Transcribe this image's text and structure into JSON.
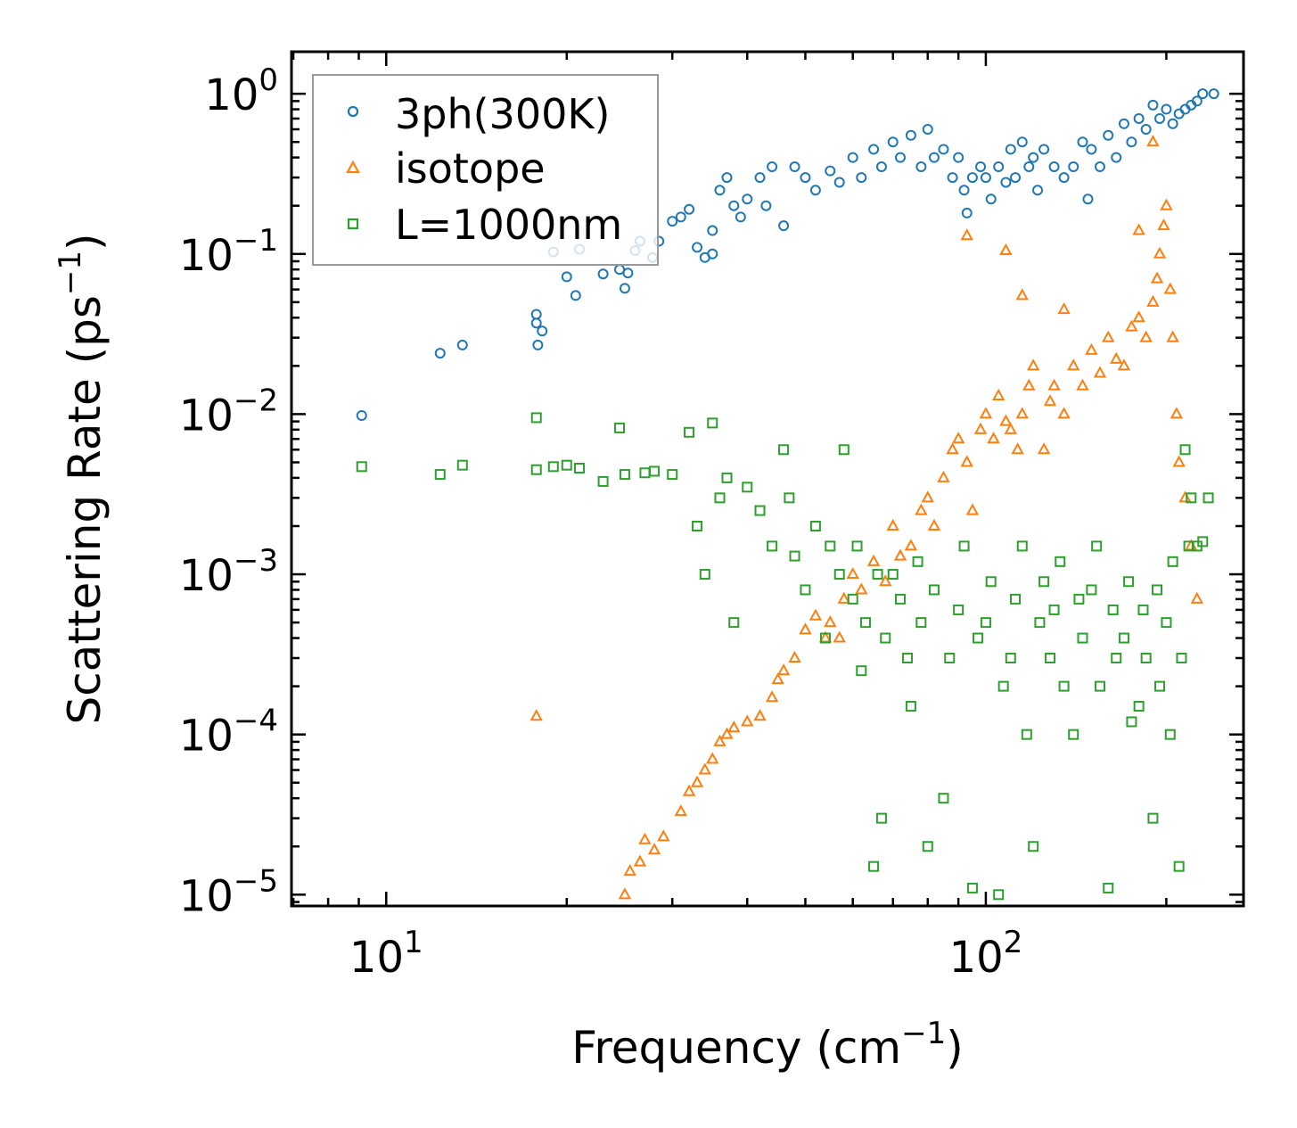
{
  "chart_data": {
    "type": "scatter",
    "title": "",
    "xlabel": "Frequency (cm",
    "xlabel_sup": "−1",
    "xlabel_end": ")",
    "ylabel": "Scattering Rate (ps",
    "ylabel_sup": "−1",
    "ylabel_end": ")",
    "xscale": "log",
    "yscale": "log",
    "xlim": [
      6.95,
      269
    ],
    "ylim": [
      8.5e-06,
      1.83
    ],
    "grid": false,
    "legend_position": "top-left",
    "x_ticks": [
      {
        "value": 10,
        "base": "10",
        "exp": "1"
      },
      {
        "value": 100,
        "base": "10",
        "exp": "2"
      }
    ],
    "y_ticks": [
      {
        "value": 1,
        "base": "10",
        "exp": "0"
      },
      {
        "value": 0.1,
        "base": "10",
        "exp": "−1"
      },
      {
        "value": 0.01,
        "base": "10",
        "exp": "−2"
      },
      {
        "value": 0.001,
        "base": "10",
        "exp": "−3"
      },
      {
        "value": 0.0001,
        "base": "10",
        "exp": "−4"
      },
      {
        "value": 1e-05,
        "base": "10",
        "exp": "−5"
      }
    ],
    "series": [
      {
        "name": "3ph(300K)",
        "marker": "circle",
        "color": "#1f77b4",
        "points": [
          [
            9.1,
            0.0098
          ],
          [
            12.3,
            0.024
          ],
          [
            13.4,
            0.027
          ],
          [
            17.8,
            0.042
          ],
          [
            17.8,
            0.037
          ],
          [
            18.2,
            0.033
          ],
          [
            17.9,
            0.027
          ],
          [
            19,
            0.103
          ],
          [
            20,
            0.072
          ],
          [
            20.7,
            0.055
          ],
          [
            21,
            0.107
          ],
          [
            23,
            0.075
          ],
          [
            24.5,
            0.08
          ],
          [
            25,
            0.061
          ],
          [
            25.3,
            0.076
          ],
          [
            26,
            0.105
          ],
          [
            26.5,
            0.12
          ],
          [
            27.8,
            0.095
          ],
          [
            28.5,
            0.12
          ],
          [
            30,
            0.16
          ],
          [
            31,
            0.17
          ],
          [
            32,
            0.19
          ],
          [
            33,
            0.11
          ],
          [
            34,
            0.095
          ],
          [
            35,
            0.14
          ],
          [
            35,
            0.1
          ],
          [
            36,
            0.25
          ],
          [
            37,
            0.3
          ],
          [
            38,
            0.2
          ],
          [
            39,
            0.17
          ],
          [
            40,
            0.22
          ],
          [
            42,
            0.3
          ],
          [
            43,
            0.2
          ],
          [
            44,
            0.35
          ],
          [
            46,
            0.15
          ],
          [
            48,
            0.35
          ],
          [
            50,
            0.3
          ],
          [
            52,
            0.25
          ],
          [
            55,
            0.33
          ],
          [
            57,
            0.28
          ],
          [
            60,
            0.4
          ],
          [
            62,
            0.3
          ],
          [
            65,
            0.45
          ],
          [
            67,
            0.35
          ],
          [
            70,
            0.5
          ],
          [
            72,
            0.4
          ],
          [
            75,
            0.55
          ],
          [
            78,
            0.35
          ],
          [
            80,
            0.6
          ],
          [
            82,
            0.4
          ],
          [
            85,
            0.45
          ],
          [
            88,
            0.3
          ],
          [
            90,
            0.4
          ],
          [
            92,
            0.25
          ],
          [
            93,
            0.18
          ],
          [
            95,
            0.3
          ],
          [
            98,
            0.35
          ],
          [
            100,
            0.3
          ],
          [
            102,
            0.22
          ],
          [
            105,
            0.35
          ],
          [
            108,
            0.28
          ],
          [
            110,
            0.45
          ],
          [
            112,
            0.3
          ],
          [
            115,
            0.5
          ],
          [
            118,
            0.35
          ],
          [
            120,
            0.4
          ],
          [
            122,
            0.25
          ],
          [
            125,
            0.45
          ],
          [
            130,
            0.35
          ],
          [
            135,
            0.3
          ],
          [
            140,
            0.35
          ],
          [
            145,
            0.5
          ],
          [
            148,
            0.22
          ],
          [
            150,
            0.45
          ],
          [
            155,
            0.35
          ],
          [
            160,
            0.55
          ],
          [
            165,
            0.4
          ],
          [
            170,
            0.65
          ],
          [
            175,
            0.5
          ],
          [
            180,
            0.7
          ],
          [
            185,
            0.6
          ],
          [
            190,
            0.85
          ],
          [
            195,
            0.7
          ],
          [
            200,
            0.8
          ],
          [
            205,
            0.65
          ],
          [
            210,
            0.75
          ],
          [
            215,
            0.8
          ],
          [
            220,
            0.85
          ],
          [
            225,
            0.9
          ],
          [
            230,
            1.0
          ],
          [
            240,
            1.0
          ]
        ]
      },
      {
        "name": "isotope",
        "marker": "triangle",
        "color": "#ff7f0e",
        "points": [
          [
            17.8,
            0.00013
          ],
          [
            25,
            1e-05
          ],
          [
            25.5,
            1.4e-05
          ],
          [
            26.5,
            1.6e-05
          ],
          [
            27,
            2.2e-05
          ],
          [
            28,
            1.9e-05
          ],
          [
            29,
            2.3e-05
          ],
          [
            31,
            3.3e-05
          ],
          [
            32,
            4.4e-05
          ],
          [
            33,
            5e-05
          ],
          [
            34,
            6e-05
          ],
          [
            35,
            7e-05
          ],
          [
            36,
            9e-05
          ],
          [
            37,
            0.0001
          ],
          [
            38,
            0.00011
          ],
          [
            40,
            0.00012
          ],
          [
            42,
            0.00013
          ],
          [
            44,
            0.00017
          ],
          [
            45,
            0.00022
          ],
          [
            46,
            0.00025
          ],
          [
            48,
            0.0003
          ],
          [
            50,
            0.00045
          ],
          [
            52,
            0.00055
          ],
          [
            54,
            0.0004
          ],
          [
            55,
            0.0005
          ],
          [
            57,
            0.0004
          ],
          [
            58,
            0.0007
          ],
          [
            60,
            0.001
          ],
          [
            62,
            0.0008
          ],
          [
            65,
            0.0012
          ],
          [
            68,
            0.0009
          ],
          [
            70,
            0.002
          ],
          [
            72,
            0.0013
          ],
          [
            75,
            0.0015
          ],
          [
            78,
            0.0025
          ],
          [
            80,
            0.003
          ],
          [
            82,
            0.002
          ],
          [
            85,
            0.004
          ],
          [
            88,
            0.006
          ],
          [
            90,
            0.007
          ],
          [
            93,
            0.005
          ],
          [
            95,
            0.0025
          ],
          [
            98,
            0.008
          ],
          [
            100,
            0.01
          ],
          [
            103,
            0.007
          ],
          [
            105,
            0.013
          ],
          [
            108,
            0.009
          ],
          [
            110,
            0.008
          ],
          [
            113,
            0.006
          ],
          [
            115,
            0.01
          ],
          [
            118,
            0.015
          ],
          [
            120,
            0.02
          ],
          [
            125,
            0.006
          ],
          [
            128,
            0.012
          ],
          [
            130,
            0.015
          ],
          [
            135,
            0.01
          ],
          [
            140,
            0.02
          ],
          [
            145,
            0.015
          ],
          [
            150,
            0.025
          ],
          [
            155,
            0.018
          ],
          [
            160,
            0.03
          ],
          [
            165,
            0.022
          ],
          [
            170,
            0.02
          ],
          [
            175,
            0.035
          ],
          [
            180,
            0.04
          ],
          [
            185,
            0.03
          ],
          [
            190,
            0.05
          ],
          [
            193,
            0.07
          ],
          [
            195,
            0.1
          ],
          [
            198,
            0.15
          ],
          [
            200,
            0.2
          ],
          [
            203,
            0.06
          ],
          [
            205,
            0.03
          ],
          [
            208,
            0.01
          ],
          [
            210,
            0.005
          ],
          [
            215,
            0.003
          ],
          [
            220,
            0.0015
          ],
          [
            225,
            0.0007
          ],
          [
            93,
            0.13
          ],
          [
            108,
            0.105
          ],
          [
            115,
            0.055
          ],
          [
            135,
            0.045
          ],
          [
            190,
            0.5
          ],
          [
            180,
            0.14
          ]
        ]
      },
      {
        "name": "L=1000nm",
        "marker": "square",
        "color": "#2ca02c",
        "points": [
          [
            9.1,
            0.0047
          ],
          [
            12.3,
            0.0042
          ],
          [
            13.4,
            0.0048
          ],
          [
            17.8,
            0.0095
          ],
          [
            17.8,
            0.0045
          ],
          [
            19,
            0.0047
          ],
          [
            20,
            0.0048
          ],
          [
            21,
            0.0046
          ],
          [
            23,
            0.0038
          ],
          [
            24.5,
            0.0082
          ],
          [
            25,
            0.0042
          ],
          [
            27,
            0.0043
          ],
          [
            28,
            0.0044
          ],
          [
            30,
            0.0042
          ],
          [
            32,
            0.0077
          ],
          [
            33,
            0.002
          ],
          [
            34,
            0.001
          ],
          [
            35,
            0.0088
          ],
          [
            36,
            0.003
          ],
          [
            37,
            0.004
          ],
          [
            38,
            0.0005
          ],
          [
            40,
            0.0035
          ],
          [
            42,
            0.0025
          ],
          [
            44,
            0.0015
          ],
          [
            46,
            0.006
          ],
          [
            47,
            0.003
          ],
          [
            48,
            0.0013
          ],
          [
            50,
            0.0008
          ],
          [
            52,
            0.002
          ],
          [
            54,
            0.0004
          ],
          [
            55,
            0.0015
          ],
          [
            57,
            0.001
          ],
          [
            58,
            0.006
          ],
          [
            60,
            0.0007
          ],
          [
            61,
            0.0015
          ],
          [
            62,
            0.00025
          ],
          [
            63,
            0.0005
          ],
          [
            65,
            1.5e-05
          ],
          [
            66,
            0.001
          ],
          [
            67,
            3e-05
          ],
          [
            68,
            0.0004
          ],
          [
            70,
            0.001
          ],
          [
            72,
            0.0007
          ],
          [
            74,
            0.0003
          ],
          [
            75,
            0.00015
          ],
          [
            77,
            0.0012
          ],
          [
            78,
            0.0005
          ],
          [
            80,
            2e-05
          ],
          [
            82,
            0.0008
          ],
          [
            85,
            4e-05
          ],
          [
            87,
            0.0003
          ],
          [
            90,
            0.0006
          ],
          [
            92,
            0.0015
          ],
          [
            95,
            1.1e-05
          ],
          [
            97,
            0.0004
          ],
          [
            100,
            0.0005
          ],
          [
            102,
            0.0009
          ],
          [
            105,
            1e-05
          ],
          [
            107,
            0.0002
          ],
          [
            110,
            0.0003
          ],
          [
            112,
            0.0007
          ],
          [
            115,
            0.0015
          ],
          [
            117,
            0.0001
          ],
          [
            120,
            2e-05
          ],
          [
            123,
            0.0005
          ],
          [
            125,
            0.0009
          ],
          [
            128,
            0.0003
          ],
          [
            130,
            0.0006
          ],
          [
            133,
            0.0012
          ],
          [
            135,
            0.0002
          ],
          [
            140,
            0.0001
          ],
          [
            143,
            0.0007
          ],
          [
            145,
            0.0004
          ],
          [
            150,
            0.0008
          ],
          [
            153,
            0.0015
          ],
          [
            155,
            0.0002
          ],
          [
            160,
            1.1e-05
          ],
          [
            163,
            0.0006
          ],
          [
            165,
            0.0003
          ],
          [
            170,
            0.0004
          ],
          [
            173,
            0.0009
          ],
          [
            175,
            0.00012
          ],
          [
            180,
            0.00015
          ],
          [
            183,
            0.0006
          ],
          [
            185,
            0.0003
          ],
          [
            190,
            3e-05
          ],
          [
            193,
            0.0008
          ],
          [
            195,
            0.0002
          ],
          [
            200,
            0.0005
          ],
          [
            203,
            0.0001
          ],
          [
            205,
            0.0012
          ],
          [
            210,
            1.5e-05
          ],
          [
            212,
            0.0003
          ],
          [
            215,
            0.006
          ],
          [
            218,
            0.0015
          ],
          [
            220,
            0.003
          ],
          [
            225,
            0.0015
          ],
          [
            230,
            0.0016
          ],
          [
            235,
            0.003
          ]
        ]
      }
    ]
  }
}
